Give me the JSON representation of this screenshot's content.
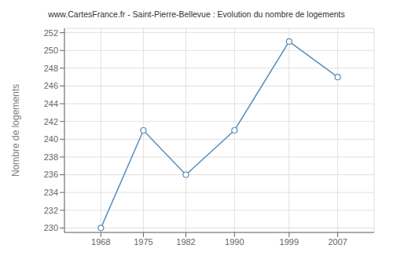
{
  "chart_data": {
    "type": "line",
    "title": "www.CartesFrance.fr - Saint-Pierre-Bellevue : Evolution du nombre de logements",
    "ylabel": "Nombre de logements",
    "x": [
      1968,
      1975,
      1982,
      1990,
      1999,
      2007
    ],
    "values": [
      230,
      241,
      236,
      241,
      251,
      247
    ],
    "xlim": [
      1962,
      2013
    ],
    "xticks": [
      1968,
      1975,
      1982,
      1990,
      1999,
      2007
    ],
    "ylim": [
      229.5,
      252.5
    ],
    "yticks": [
      230,
      232,
      234,
      236,
      238,
      240,
      242,
      244,
      246,
      248,
      250,
      252
    ],
    "grid": true,
    "color": "#5b8db8",
    "marker": "circle"
  }
}
